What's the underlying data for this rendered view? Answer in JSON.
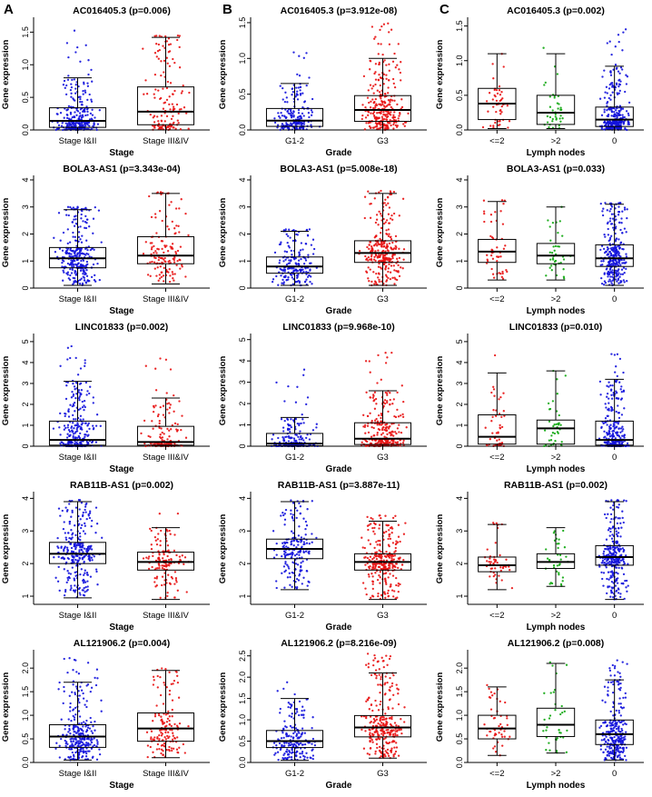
{
  "figure": {
    "panel_labels": [
      "A",
      "B",
      "C"
    ],
    "ylabel": "Gene expression",
    "colors": {
      "blue": "#1414dc",
      "red": "#e81414",
      "green": "#10a810"
    },
    "axis_color": "#000000"
  },
  "chart_data": [
    {
      "type": "boxplot-strip",
      "panel": "A",
      "row": 0,
      "title": "AC016405.3 (p=0.006)",
      "xlabel": "Stage",
      "ylabel": "Gene expression",
      "ylim": [
        0,
        1.7
      ],
      "yticks": [
        0,
        0.5,
        1,
        1.5
      ],
      "ytick_labels": [
        "0.0",
        "0.5",
        "1.0",
        "1.5"
      ],
      "groups": [
        {
          "label": "Stage I&II",
          "color": "blue",
          "n": 280,
          "stats": {
            "min": 0,
            "q1": 0.04,
            "median": 0.14,
            "q3": 0.34,
            "whisker_high": 0.8,
            "points_max": 1.62
          }
        },
        {
          "label": "Stage III&IV",
          "color": "red",
          "n": 140,
          "stats": {
            "min": 0,
            "q1": 0.08,
            "median": 0.28,
            "q3": 0.66,
            "whisker_high": 1.42,
            "points_max": 1.45
          }
        }
      ]
    },
    {
      "type": "boxplot-strip",
      "panel": "A",
      "row": 1,
      "title": "BOLA3-AS1 (p=3.343e-04)",
      "xlabel": "Stage",
      "ylabel": "Gene expression",
      "ylim": [
        0,
        4.1
      ],
      "yticks": [
        0,
        1,
        2,
        3,
        4
      ],
      "ytick_labels": [
        "0",
        "1",
        "2",
        "3",
        "4"
      ],
      "groups": [
        {
          "label": "Stage I&II",
          "color": "blue",
          "n": 280,
          "stats": {
            "min": 0.1,
            "q1": 0.75,
            "median": 1.1,
            "q3": 1.5,
            "whisker_high": 2.9,
            "points_max": 3.0
          }
        },
        {
          "label": "Stage III&IV",
          "color": "red",
          "n": 140,
          "stats": {
            "min": 0.15,
            "q1": 0.9,
            "median": 1.2,
            "q3": 1.9,
            "whisker_high": 3.5,
            "points_max": 3.55
          }
        }
      ]
    },
    {
      "type": "boxplot-strip",
      "panel": "A",
      "row": 2,
      "title": "LINC01833 (p=0.002)",
      "xlabel": "Stage",
      "ylabel": "Gene expression",
      "ylim": [
        0,
        5.3
      ],
      "yticks": [
        0,
        1,
        2,
        3,
        4,
        5
      ],
      "ytick_labels": [
        "0",
        "1",
        "2",
        "3",
        "4",
        "5"
      ],
      "groups": [
        {
          "label": "Stage I&II",
          "color": "blue",
          "n": 280,
          "stats": {
            "min": 0,
            "q1": 0.05,
            "median": 0.3,
            "q3": 1.2,
            "whisker_high": 3.1,
            "points_max": 5.05
          }
        },
        {
          "label": "Stage III&IV",
          "color": "red",
          "n": 140,
          "stats": {
            "min": 0,
            "q1": 0.05,
            "median": 0.2,
            "q3": 0.95,
            "whisker_high": 2.3,
            "points_max": 4.35
          }
        }
      ]
    },
    {
      "type": "boxplot-strip",
      "panel": "A",
      "row": 3,
      "title": "RAB11B-AS1 (p=0.002)",
      "xlabel": "Stage",
      "ylabel": "Gene expression",
      "ylim": [
        0.75,
        4.15
      ],
      "yticks": [
        1,
        2,
        3,
        4
      ],
      "ytick_labels": [
        "1",
        "2",
        "3",
        "4"
      ],
      "groups": [
        {
          "label": "Stage I&II",
          "color": "blue",
          "n": 280,
          "stats": {
            "min": 0.95,
            "q1": 2.0,
            "median": 2.3,
            "q3": 2.65,
            "whisker_high": 3.9,
            "points_max": 3.95
          }
        },
        {
          "label": "Stage III&IV",
          "color": "red",
          "n": 140,
          "stats": {
            "min": 0.9,
            "q1": 1.8,
            "median": 2.05,
            "q3": 2.35,
            "whisker_high": 3.1,
            "points_max": 3.6
          }
        }
      ]
    },
    {
      "type": "boxplot-strip",
      "panel": "A",
      "row": 4,
      "title": "AL121906.2 (p=0.004)",
      "xlabel": "Stage",
      "ylabel": "Gene expression",
      "ylim": [
        0,
        2.35
      ],
      "yticks": [
        0,
        0.5,
        1,
        1.5,
        2
      ],
      "ytick_labels": [
        "0.0",
        "0.5",
        "1.0",
        "1.5",
        "2.0"
      ],
      "groups": [
        {
          "label": "Stage I&II",
          "color": "blue",
          "n": 280,
          "stats": {
            "min": 0.05,
            "q1": 0.32,
            "median": 0.55,
            "q3": 0.8,
            "whisker_high": 1.7,
            "points_max": 2.28
          }
        },
        {
          "label": "Stage III&IV",
          "color": "red",
          "n": 140,
          "stats": {
            "min": 0.1,
            "q1": 0.45,
            "median": 0.72,
            "q3": 1.05,
            "whisker_high": 1.95,
            "points_max": 2.0
          }
        }
      ]
    },
    {
      "type": "boxplot-strip",
      "panel": "B",
      "row": 0,
      "title": "AC016405.3 (p=3.912e-08)",
      "xlabel": "Grade",
      "ylabel": "Gene expression",
      "ylim": [
        0,
        1.55
      ],
      "yticks": [
        0,
        0.5,
        1,
        1.5
      ],
      "ytick_labels": [
        "0.0",
        "0.5",
        "1.0",
        "1.5"
      ],
      "groups": [
        {
          "label": "G1-2",
          "color": "blue",
          "n": 190,
          "stats": {
            "min": 0,
            "q1": 0.05,
            "median": 0.13,
            "q3": 0.3,
            "whisker_high": 0.65,
            "points_max": 1.15
          }
        },
        {
          "label": "G3",
          "color": "red",
          "n": 280,
          "stats": {
            "min": 0,
            "q1": 0.12,
            "median": 0.28,
            "q3": 0.48,
            "whisker_high": 1.0,
            "points_max": 1.5
          }
        }
      ]
    },
    {
      "type": "boxplot-strip",
      "panel": "B",
      "row": 1,
      "title": "BOLA3-AS1 (p=5.008e-18)",
      "xlabel": "Grade",
      "ylabel": "Gene expression",
      "ylim": [
        0,
        4.1
      ],
      "yticks": [
        0,
        1,
        2,
        3,
        4
      ],
      "ytick_labels": [
        "0",
        "1",
        "2",
        "3",
        "4"
      ],
      "groups": [
        {
          "label": "G1-2",
          "color": "blue",
          "n": 190,
          "stats": {
            "min": 0.1,
            "q1": 0.55,
            "median": 0.8,
            "q3": 1.15,
            "whisker_high": 2.1,
            "points_max": 2.2
          }
        },
        {
          "label": "G3",
          "color": "red",
          "n": 280,
          "stats": {
            "min": 0.1,
            "q1": 0.95,
            "median": 1.3,
            "q3": 1.75,
            "whisker_high": 3.5,
            "points_max": 3.6
          }
        }
      ]
    },
    {
      "type": "boxplot-strip",
      "panel": "B",
      "row": 2,
      "title": "LINC01833 (p=9.968e-10)",
      "xlabel": "Grade",
      "ylabel": "Gene expression",
      "ylim": [
        0,
        5.2
      ],
      "yticks": [
        0,
        1,
        2,
        3,
        4,
        5
      ],
      "ytick_labels": [
        "0",
        "1",
        "2",
        "3",
        "4",
        "5"
      ],
      "groups": [
        {
          "label": "G1-2",
          "color": "blue",
          "n": 190,
          "stats": {
            "min": 0,
            "q1": 0.02,
            "median": 0.12,
            "q3": 0.6,
            "whisker_high": 1.35,
            "points_max": 4.5
          }
        },
        {
          "label": "G3",
          "color": "red",
          "n": 280,
          "stats": {
            "min": 0,
            "q1": 0.08,
            "median": 0.35,
            "q3": 1.1,
            "whisker_high": 2.6,
            "points_max": 4.4
          }
        }
      ]
    },
    {
      "type": "boxplot-strip",
      "panel": "B",
      "row": 3,
      "title": "RAB11B-AS1 (p=3.887e-11)",
      "xlabel": "Grade",
      "ylabel": "Gene expression",
      "ylim": [
        0.75,
        4.15
      ],
      "yticks": [
        1,
        2,
        3,
        4
      ],
      "ytick_labels": [
        "1",
        "2",
        "3",
        "4"
      ],
      "groups": [
        {
          "label": "G1-2",
          "color": "blue",
          "n": 190,
          "stats": {
            "min": 1.2,
            "q1": 2.15,
            "median": 2.45,
            "q3": 2.75,
            "whisker_high": 3.9,
            "points_max": 3.95
          }
        },
        {
          "label": "G3",
          "color": "red",
          "n": 280,
          "stats": {
            "min": 0.9,
            "q1": 1.8,
            "median": 2.05,
            "q3": 2.3,
            "whisker_high": 3.3,
            "points_max": 3.5
          }
        }
      ]
    },
    {
      "type": "boxplot-strip",
      "panel": "B",
      "row": 4,
      "title": "AL121906.2 (p=8.216e-09)",
      "xlabel": "Grade",
      "ylabel": "Gene expression",
      "ylim": [
        0,
        2.6
      ],
      "yticks": [
        0,
        0.5,
        1,
        1.5,
        2,
        2.5
      ],
      "ytick_labels": [
        "0.0",
        "0.5",
        "1.0",
        "1.5",
        "2.0",
        "2.5"
      ],
      "groups": [
        {
          "label": "G1-2",
          "color": "blue",
          "n": 190,
          "stats": {
            "min": 0.05,
            "q1": 0.35,
            "median": 0.5,
            "q3": 0.75,
            "whisker_high": 1.5,
            "points_max": 1.9
          }
        },
        {
          "label": "G3",
          "color": "red",
          "n": 280,
          "stats": {
            "min": 0.1,
            "q1": 0.6,
            "median": 0.82,
            "q3": 1.1,
            "whisker_high": 2.1,
            "points_max": 2.55
          }
        }
      ]
    },
    {
      "type": "boxplot-strip",
      "panel": "C",
      "row": 0,
      "title": "AC016405.3 (p=0.002)",
      "xlabel": "Lymph nodes",
      "ylabel": "Gene expression",
      "ylim": [
        0,
        1.6
      ],
      "yticks": [
        0,
        0.5,
        1,
        1.5
      ],
      "ytick_labels": [
        "0.0",
        "0.5",
        "1.0",
        "1.5"
      ],
      "groups": [
        {
          "label": "<=2",
          "color": "red",
          "n": 50,
          "stats": {
            "min": 0.02,
            "q1": 0.15,
            "median": 0.38,
            "q3": 0.6,
            "whisker_high": 1.1,
            "points_max": 1.5
          }
        },
        {
          "label": ">2",
          "color": "green",
          "n": 38,
          "stats": {
            "min": 0.02,
            "q1": 0.08,
            "median": 0.25,
            "q3": 0.5,
            "whisker_high": 1.1,
            "points_max": 1.42
          }
        },
        {
          "label": "0",
          "color": "blue",
          "n": 280,
          "stats": {
            "min": 0,
            "q1": 0.05,
            "median": 0.15,
            "q3": 0.33,
            "whisker_high": 0.92,
            "points_max": 1.52
          }
        }
      ]
    },
    {
      "type": "boxplot-strip",
      "panel": "C",
      "row": 1,
      "title": "BOLA3-AS1 (p=0.033)",
      "xlabel": "Lymph nodes",
      "ylabel": "Gene expression",
      "ylim": [
        0,
        4.1
      ],
      "yticks": [
        0,
        1,
        2,
        3,
        4
      ],
      "ytick_labels": [
        "0",
        "1",
        "2",
        "3",
        "4"
      ],
      "groups": [
        {
          "label": "<=2",
          "color": "red",
          "n": 50,
          "stats": {
            "min": 0.3,
            "q1": 0.95,
            "median": 1.35,
            "q3": 1.8,
            "whisker_high": 3.2,
            "points_max": 3.25
          }
        },
        {
          "label": ">2",
          "color": "green",
          "n": 38,
          "stats": {
            "min": 0.3,
            "q1": 0.9,
            "median": 1.2,
            "q3": 1.65,
            "whisker_high": 3.0,
            "points_max": 3.0
          }
        },
        {
          "label": "0",
          "color": "blue",
          "n": 280,
          "stats": {
            "min": 0.1,
            "q1": 0.8,
            "median": 1.1,
            "q3": 1.6,
            "whisker_high": 3.1,
            "points_max": 3.15
          }
        }
      ]
    },
    {
      "type": "boxplot-strip",
      "panel": "C",
      "row": 2,
      "title": "LINC01833 (p=0.010)",
      "xlabel": "Lymph nodes",
      "ylabel": "Gene expression",
      "ylim": [
        0,
        5.3
      ],
      "yticks": [
        0,
        1,
        2,
        3,
        4,
        5
      ],
      "ytick_labels": [
        "0",
        "1",
        "2",
        "3",
        "4",
        "5"
      ],
      "groups": [
        {
          "label": "<=2",
          "color": "red",
          "n": 50,
          "stats": {
            "min": 0,
            "q1": 0.1,
            "median": 0.45,
            "q3": 1.5,
            "whisker_high": 3.5,
            "points_max": 4.4
          }
        },
        {
          "label": ">2",
          "color": "green",
          "n": 38,
          "stats": {
            "min": 0,
            "q1": 0.1,
            "median": 0.85,
            "q3": 1.25,
            "whisker_high": 3.6,
            "points_max": 3.6
          }
        },
        {
          "label": "0",
          "color": "blue",
          "n": 280,
          "stats": {
            "min": 0,
            "q1": 0.05,
            "median": 0.3,
            "q3": 1.2,
            "whisker_high": 3.2,
            "points_max": 5.05
          }
        }
      ]
    },
    {
      "type": "boxplot-strip",
      "panel": "C",
      "row": 3,
      "title": "RAB11B-AS1 (p=0.002)",
      "xlabel": "Lymph nodes",
      "ylabel": "Gene expression",
      "ylim": [
        0.75,
        4.15
      ],
      "yticks": [
        1,
        2,
        3,
        4
      ],
      "ytick_labels": [
        "1",
        "2",
        "3",
        "4"
      ],
      "groups": [
        {
          "label": "<=2",
          "color": "red",
          "n": 50,
          "stats": {
            "min": 1.2,
            "q1": 1.75,
            "median": 1.95,
            "q3": 2.2,
            "whisker_high": 3.2,
            "points_max": 3.25
          }
        },
        {
          "label": ">2",
          "color": "green",
          "n": 38,
          "stats": {
            "min": 1.3,
            "q1": 1.85,
            "median": 2.05,
            "q3": 2.3,
            "whisker_high": 3.1,
            "points_max": 3.1
          }
        },
        {
          "label": "0",
          "color": "blue",
          "n": 280,
          "stats": {
            "min": 0.9,
            "q1": 1.95,
            "median": 2.2,
            "q3": 2.55,
            "whisker_high": 3.9,
            "points_max": 3.95
          }
        }
      ]
    },
    {
      "type": "boxplot-strip",
      "panel": "C",
      "row": 4,
      "title": "AL121906.2 (p=0.008)",
      "xlabel": "Lymph nodes",
      "ylabel": "Gene expression",
      "ylim": [
        0,
        2.35
      ],
      "yticks": [
        0,
        0.5,
        1,
        1.5,
        2
      ],
      "ytick_labels": [
        "0.0",
        "0.5",
        "1.0",
        "1.5",
        "2.0"
      ],
      "groups": [
        {
          "label": "<=2",
          "color": "red",
          "n": 50,
          "stats": {
            "min": 0.15,
            "q1": 0.5,
            "median": 0.72,
            "q3": 1.0,
            "whisker_high": 1.6,
            "points_max": 1.65
          }
        },
        {
          "label": ">2",
          "color": "green",
          "n": 38,
          "stats": {
            "min": 0.2,
            "q1": 0.55,
            "median": 0.8,
            "q3": 1.15,
            "whisker_high": 2.1,
            "points_max": 2.15
          }
        },
        {
          "label": "0",
          "color": "blue",
          "n": 280,
          "stats": {
            "min": 0.05,
            "q1": 0.38,
            "median": 0.6,
            "q3": 0.9,
            "whisker_high": 1.75,
            "points_max": 2.2
          }
        }
      ]
    }
  ]
}
